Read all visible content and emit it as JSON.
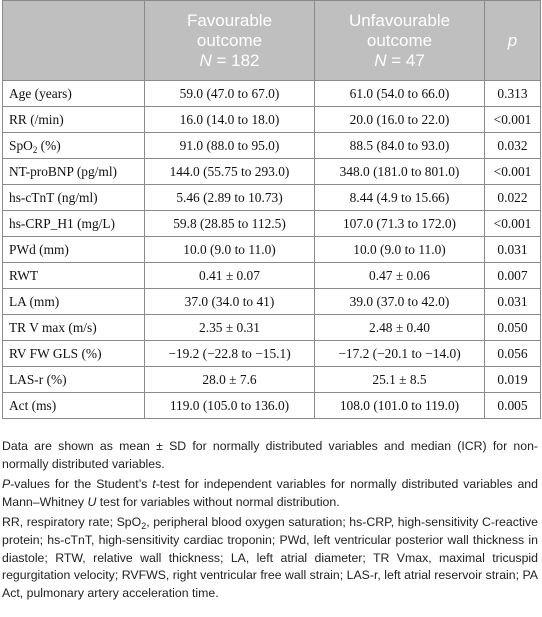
{
  "table": {
    "headers": {
      "col0": "",
      "col1_line1": "Favourable",
      "col1_line2": "outcome",
      "col1_n_label": "N",
      "col1_n_value": " = 182",
      "col2_line1": "Unfavourable",
      "col2_line2": "outcome",
      "col2_n_label": "N",
      "col2_n_value": " = 47",
      "col3": "p"
    },
    "rows": [
      {
        "label": "Age (years)",
        "fav": "59.0 (47.0 to 67.0)",
        "unfav": "61.0 (54.0 to 66.0)",
        "p": "0.313"
      },
      {
        "label": "RR (/min)",
        "fav": "16.0 (14.0 to 18.0)",
        "unfav": "20.0 (16.0 to 22.0)",
        "p": "<0.001"
      },
      {
        "label_pre": "SpO",
        "label_sub": "2",
        "label_post": " (%)",
        "fav": "91.0 (88.0 to 95.0)",
        "unfav": "88.5 (84.0 to 93.0)",
        "p": "0.032"
      },
      {
        "label": "NT-proBNP (pg/ml)",
        "fav": "144.0 (55.75 to 293.0)",
        "unfav": "348.0 (181.0 to 801.0)",
        "p": "<0.001"
      },
      {
        "label": "hs-cTnT (ng/ml)",
        "fav": "5.46 (2.89 to 10.73)",
        "unfav": "8.44 (4.9 to 15.66)",
        "p": "0.022"
      },
      {
        "label": "hs-CRP_H1 (mg/L)",
        "fav": "59.8 (28.85 to 112.5)",
        "unfav": "107.0 (71.3 to 172.0)",
        "p": "<0.001"
      },
      {
        "label": "PWd (mm)",
        "fav": "10.0 (9.0 to 11.0)",
        "unfav": "10.0 (9.0 to 11.0)",
        "p": "0.031"
      },
      {
        "label": "RWT",
        "fav": "0.41 ± 0.07",
        "unfav": "0.47 ± 0.06",
        "p": "0.007"
      },
      {
        "label": "LA (mm)",
        "fav": "37.0 (34.0 to 41)",
        "unfav": "39.0 (37.0 to 42.0)",
        "p": "0.031"
      },
      {
        "label": "TR V max (m/s)",
        "fav": "2.35 ± 0.31",
        "unfav": "2.48 ± 0.40",
        "p": "0.050"
      },
      {
        "label": "RV FW GLS (%)",
        "fav": "−19.2 (−22.8 to −15.1)",
        "unfav": "−17.2 (−20.1 to −14.0)",
        "p": "0.056"
      },
      {
        "label": "LAS-r (%)",
        "fav": "28.0 ± 7.6",
        "unfav": "25.1 ± 8.5",
        "p": "0.019"
      },
      {
        "label": "Act (ms)",
        "fav": "119.0 (105.0 to 136.0)",
        "unfav": "108.0 (101.0 to 119.0)",
        "p": "0.005"
      }
    ]
  },
  "notes": {
    "n1": "Data are shown as mean ± SD for normally distributed variables and median (ICR) for non-normally distributed variables.",
    "n2_p": "P",
    "n2_a": "-values for the Student’s ",
    "n2_t": "t",
    "n2_b": "-test for independent variables for normally distributed variables and Mann–Whitney ",
    "n2_u": "U",
    "n2_c": " test for variables without normal distribution.",
    "n3_a": "RR, respiratory rate; SpO",
    "n3_sub": "2",
    "n3_b": ", peripheral blood oxygen saturation; hs-CRP, high-sensitivity C-reactive protein; hs-cTnT, high-sensitivity cardiac troponin; PWd, left ventricular posterior wall thickness in diastole; RTW, relative wall thickness; LA, left atrial diameter; TR Vmax, maximal tricuspid regurgitation velocity; RVFWS, right ventricular free wall strain; LAS-r, left atrial reservoir strain; PA Act, pulmonary artery acceleration time."
  }
}
